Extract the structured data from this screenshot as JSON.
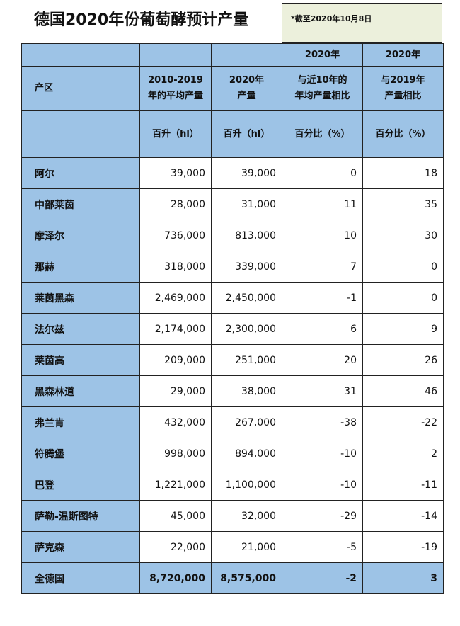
{
  "title": "德国2020年份葡萄酵预计产量",
  "note": "*截至2020年10月8日",
  "header": {
    "row1": [
      "",
      "",
      "",
      "2020年",
      "2020年"
    ],
    "row2": [
      "产区",
      "2010-2019\n年的平均产量",
      "2020年\n产量",
      "与近10年的\n年均产量相比",
      "与2019年\n产量相比"
    ],
    "row3": [
      "",
      "百升（hl）",
      "百升（hl）",
      "百分比（%）",
      "百分比（%）"
    ]
  },
  "rows": [
    [
      "阿尔",
      "39,000",
      "39,000",
      "0",
      "18"
    ],
    [
      "中部莱茵",
      "28,000",
      "31,000",
      "11",
      "35"
    ],
    [
      "摩泽尔",
      "736,000",
      "813,000",
      "10",
      "30"
    ],
    [
      "那赫",
      "318,000",
      "339,000",
      "7",
      "0"
    ],
    [
      "莱茵黑森",
      "2,469,000",
      "2,450,000",
      "-1",
      "0"
    ],
    [
      "法尔兹",
      "2,174,000",
      "2,300,000",
      "6",
      "9"
    ],
    [
      "莱茵高",
      "209,000",
      "251,000",
      "20",
      "26"
    ],
    [
      "黑森林道",
      "29,000",
      "38,000",
      "31",
      "46"
    ],
    [
      "弗兰肯",
      "432,000",
      "267,000",
      "-38",
      "-22"
    ],
    [
      "符腾堡",
      "998,000",
      "894,000",
      "-10",
      "2"
    ],
    [
      "巴登",
      "1,221,000",
      "1,100,000",
      "-10",
      "-11"
    ],
    [
      "萨勒-温斯图特",
      "45,000",
      "32,000",
      "-29",
      "-14"
    ],
    [
      "萨克森",
      "22,000",
      "21,000",
      "-5",
      "-19"
    ]
  ],
  "total": [
    "全德国",
    "8,720,000",
    "8,575,000",
    "-2",
    "3"
  ],
  "colors": {
    "header_blue": "#9dc3e6",
    "note_bg": "#ecf0dc"
  }
}
